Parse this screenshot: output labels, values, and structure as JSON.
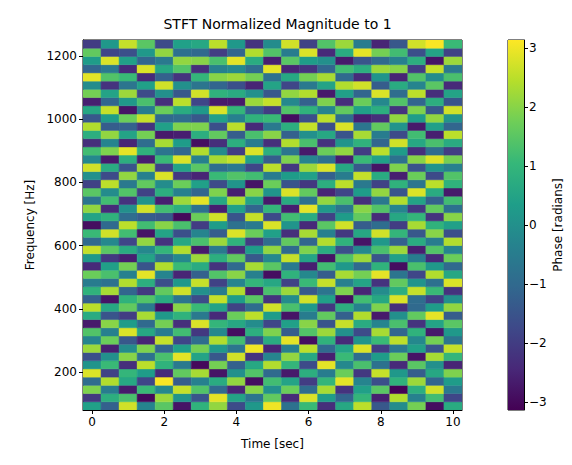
{
  "chart_data": {
    "type": "heatmap",
    "title": "STFT Normalized Magnitude to 1",
    "x_label": "Time [sec]",
    "y_label": "Frequency [Hz]",
    "x": [
      0,
      0.5,
      1,
      1.5,
      2,
      2.5,
      3,
      3.5,
      4,
      4.5,
      5,
      5.5,
      6,
      6.5,
      7,
      7.5,
      8,
      8.5,
      9,
      9.5,
      10
    ],
    "y": [
      93,
      119,
      145,
      171,
      197,
      223,
      249,
      275,
      301,
      327,
      353,
      379,
      405,
      431,
      457,
      483,
      509,
      535,
      561,
      587,
      613,
      639,
      665,
      691,
      717,
      743,
      769,
      795,
      821,
      847,
      873,
      899,
      925,
      951,
      977,
      1003,
      1029,
      1055,
      1081,
      1107,
      1133,
      1159,
      1185,
      1211,
      1237
    ],
    "z": [
      [
        0.4,
        -1.2,
        2.7,
        -0.3,
        1.5,
        -2.8,
        0.9,
        2.1,
        -1.7,
        0.2,
        3.0,
        -0.8,
        1.1,
        -2.3,
        0.6,
        2.5,
        -1.4,
        -0.1,
        1.8,
        -2.9,
        0.7
      ],
      [
        -2.1,
        0.8,
        1.3,
        -3.0,
        2.2,
        0.1,
        -1.5,
        2.9,
        0.5,
        -0.7,
        1.6,
        -2.4,
        2.8,
        0.3,
        -1.1,
        1.0,
        -2.6,
        2.4,
        -0.4,
        1.2,
        -1.8
      ],
      [
        1.9,
        -0.5,
        -2.7,
        1.1,
        -0.2,
        2.6,
        1.4,
        -1.0,
        -2.5,
        2.0,
        0.0,
        1.7,
        -0.9,
        2.3,
        -2.2,
        0.4,
        1.5,
        -3.1,
        0.8,
        2.7,
        -0.6
      ],
      [
        -0.9,
        2.4,
        0.6,
        -1.8,
        3.1,
        -1.3,
        -0.4,
        0.7,
        2.1,
        -2.9,
        1.2,
        0.5,
        -2.0,
        1.0,
        2.9,
        -0.3,
        -1.6,
        0.9,
        2.2,
        -1.1,
        0.3
      ],
      [
        2.8,
        -1.9,
        1.0,
        0.3,
        -2.4,
        1.6,
        2.3,
        -2.8,
        0.0,
        1.4,
        -1.0,
        -2.7,
        0.8,
        -0.5,
        1.7,
        -2.1,
        2.6,
        0.2,
        -1.3,
        0.6,
        1.9
      ],
      [
        0.1,
        1.1,
        -2.3,
        2.5,
        0.9,
        -0.6,
        -3.0,
        1.8,
        -1.2,
        0.6,
        2.4,
        1.0,
        -1.7,
        2.9,
        -0.2,
        1.3,
        -0.8,
        -2.4,
        1.5,
        0.0,
        -2.5
      ],
      [
        -1.6,
        0.0,
        2.0,
        -0.8,
        1.3,
        2.9,
        0.5,
        -1.4,
        2.7,
        -2.2,
        -0.3,
        2.1,
        0.6,
        -2.6,
        1.1,
        -0.9,
        0.3,
        1.7,
        -2.8,
        2.3,
        1.0
      ],
      [
        2.2,
        -2.6,
        -0.1,
        1.9,
        -1.1,
        0.4,
        1.8,
        0.2,
        -0.7,
        3.0,
        -2.5,
        -0.4,
        2.5,
        -1.0,
        0.5,
        2.8,
        -2.0,
        -0.6,
        0.4,
        -1.5,
        2.6
      ],
      [
        -0.3,
        1.7,
        -1.4,
        -2.5,
        2.6,
        -1.8,
        -0.9,
        2.4,
        1.2,
        -1.6,
        0.7,
        2.9,
        -2.9,
        0.9,
        -2.4,
        0.1,
        1.1,
        2.5,
        -0.2,
        1.8,
        -0.7
      ],
      [
        1.4,
        -0.4,
        2.8,
        0.6,
        -0.5,
        1.2,
        -2.1,
        -0.2,
        -2.9,
        0.8,
        1.9,
        -1.3,
        1.4,
        2.2,
        0.0,
        -1.7,
        2.3,
        -1.1,
        0.9,
        -2.7,
        0.2
      ],
      [
        -2.7,
        2.0,
        0.3,
        -1.0,
        1.8,
        -2.3,
        2.8,
        1.0,
        0.6,
        -0.1,
        -1.8,
        0.4,
        2.0,
        -1.5,
        2.6,
        0.7,
        -0.3,
        1.3,
        -2.2,
        0.5,
        1.5
      ],
      [
        0.7,
        -1.5,
        -2.0,
        2.3,
        0.2,
        0.9,
        -0.6,
        -2.4,
        1.7,
        2.5,
        0.3,
        -2.8,
        -0.5,
        1.6,
        -1.2,
        2.4,
        -2.7,
        0.0,
        1.6,
        2.9,
        -1.3
      ],
      [
        2.5,
        0.6,
        1.6,
        -0.6,
        -2.9,
        2.0,
        1.1,
        0.5,
        -1.9,
        -0.9,
        2.7,
        1.3,
        0.2,
        -2.1,
        0.8,
        -0.4,
        1.9,
        -2.3,
        -1.0,
        0.3,
        2.1
      ],
      [
        -1.2,
        -2.8,
        0.9,
        1.4,
        0.7,
        -0.7,
        -1.7,
        2.6,
        0.3,
        1.5,
        -2.2,
        -0.1,
        2.7,
        0.4,
        -2.9,
        1.2,
        0.6,
        2.8,
        -0.9,
        -1.9,
        0.0
      ],
      [
        0.9,
        2.3,
        -1.1,
        -2.1,
        1.6,
        2.7,
        0.0,
        -0.5,
        2.4,
        -2.6,
        1.3,
        2.2,
        -1.4,
        -0.7,
        1.9,
        -2.5,
        -0.1,
        0.8,
        2.6,
        1.1,
        -2.2
      ],
      [
        -0.5,
        -0.8,
        2.4,
        0.8,
        -1.6,
        0.2,
        2.6,
        -1.9,
        -0.3,
        1.0,
        0.6,
        -1.9,
        1.1,
        2.6,
        -0.4,
        0.5,
        -2.2,
        1.6,
        0.1,
        -0.8,
        2.8
      ],
      [
        1.7,
        1.3,
        -0.4,
        2.9,
        -0.3,
        -2.5,
        -1.2,
        1.4,
        2.0,
        -0.4,
        -2.9,
        0.9,
        -0.2,
        -1.3,
        2.3,
        1.8,
        2.9,
        -0.7,
        -1.8,
        2.4,
        0.6
      ],
      [
        -2.4,
        0.4,
        1.8,
        -1.5,
        2.4,
        1.1,
        0.7,
        -2.2,
        -1.0,
        2.3,
        1.5,
        -0.6,
        -2.6,
        1.2,
        0.2,
        -1.0,
        0.9,
        -2.9,
        1.3,
        0.2,
        -1.0
      ],
      [
        0.2,
        -2.1,
        -2.6,
        0.5,
        -0.9,
        -0.2,
        2.2,
        0.8,
        1.6,
        -1.4,
        -0.2,
        2.6,
        0.5,
        -2.8,
        1.4,
        2.2,
        -1.5,
        0.4,
        -0.5,
        -2.4,
        1.7
      ],
      [
        2.6,
        1.5,
        0.7,
        -0.2,
        1.0,
        2.4,
        -2.7,
        -0.6,
        -2.3,
        0.3,
        2.1,
        -1.0,
        1.9,
        0.7,
        -1.6,
        -0.2,
        1.3,
        2.2,
        -2.6,
        1.4,
        -0.3
      ],
      [
        -1.0,
        -0.2,
        -1.8,
        2.1,
        -2.2,
        0.6,
        1.3,
        2.2,
        0.9,
        -2.0,
        -0.9,
        1.6,
        -1.1,
        2.4,
        0.9,
        -2.8,
        0.2,
        -1.2,
        0.7,
        -0.5,
        2.4
      ],
      [
        1.1,
        2.7,
        1.2,
        -2.8,
        0.5,
        -1.6,
        -0.3,
        -1.3,
        2.8,
        1.7,
        0.4,
        -2.3,
        2.3,
        -0.4,
        -2.1,
        0.6,
        2.7,
        1.0,
        -1.4,
        2.0,
        -1.6
      ],
      [
        -2.9,
        -1.0,
        2.5,
        1.2,
        2.0,
        1.3,
        -2.0,
        0.3,
        -0.8,
        -0.6,
        2.8,
        0.1,
        -2.4,
        1.5,
        2.7,
        -1.3,
        -0.9,
        -2.0,
        2.3,
        0.9,
        0.4
      ],
      [
        0.5,
        0.9,
        -0.9,
        -1.3,
        -1.4,
        -3.0,
        1.7,
        2.7,
        -1.5,
        2.6,
        -1.7,
        1.2,
        0.7,
        -1.9,
        0.3,
        1.6,
        -2.4,
        0.6,
        1.0,
        -2.2,
        2.0
      ],
      [
        2.1,
        -2.4,
        0.0,
        2.7,
        1.2,
        0.8,
        -0.8,
        -2.6,
        0.4,
        -1.1,
        1.0,
        -2.6,
        2.9,
        0.2,
        -0.7,
        2.0,
        1.4,
        -0.3,
        -2.1,
        1.6,
        -0.8
      ],
      [
        -0.7,
        1.2,
        -2.2,
        0.1,
        -2.6,
        2.2,
        2.9,
        0.6,
        2.3,
        0.5,
        -2.7,
        0.7,
        -0.8,
        2.1,
        1.3,
        -2.3,
        -0.6,
        2.4,
        0.5,
        -1.2,
        1.2
      ],
      [
        1.5,
        -0.1,
        1.4,
        -1.9,
        0.8,
        -0.4,
        -1.1,
        1.9,
        -2.6,
        2.0,
        0.1,
        2.8,
        1.6,
        -2.5,
        -1.8,
        0.3,
        2.1,
        -1.5,
        2.8,
        0.7,
        -2.7
      ],
      [
        -1.9,
        2.5,
        -0.6,
        1.6,
        -0.1,
        1.7,
        0.4,
        -1.7,
        0.1,
        -2.8,
        1.7,
        -1.5,
        -2.1,
        0.8,
        2.5,
        -0.6,
        -1.9,
        0.9,
        -0.7,
        2.5,
        0.9
      ],
      [
        0.0,
        -1.7,
        2.1,
        -0.4,
        2.8,
        -2.1,
        -2.5,
        1.1,
        1.4,
        1.2,
        -0.5,
        0.3,
        0.4,
        -1.2,
        -0.5,
        2.6,
        0.7,
        -2.6,
        1.7,
        -1.7,
        1.4
      ],
      [
        2.7,
        0.7,
        -1.5,
        2.2,
        -1.9,
        0.5,
        1.5,
        -0.9,
        -0.6,
        -1.8,
        2.5,
        -2.1,
        2.2,
        2.8,
        0.6,
        -1.4,
        -2.8,
        1.9,
        -1.5,
        0.1,
        -0.4
      ],
      [
        -0.2,
        -2.7,
        0.8,
        -2.6,
        1.1,
        2.8,
        -0.4,
        2.3,
        2.6,
        0.4,
        -1.3,
        1.9,
        -0.3,
        -0.8,
        -2.6,
        1.1,
        0.4,
        -0.8,
        2.0,
        2.8,
        1.8
      ],
      [
        1.2,
        1.9,
        2.9,
        0.9,
        -0.7,
        -1.1,
        2.4,
        -0.1,
        -2.0,
        2.8,
        0.8,
        -0.7,
        -2.7,
        1.7,
        2.1,
        -2.0,
        2.5,
        0.3,
        -2.3,
        -0.9,
        -2.0
      ],
      [
        -2.3,
        -0.3,
        -2.5,
        -0.9,
        2.3,
        0.3,
        -2.9,
        -2.3,
        0.8,
        -0.5,
        -2.3,
        2.4,
        1.3,
        -2.2,
        0.1,
        0.9,
        -1.1,
        2.7,
        0.6,
        1.3,
        0.7
      ],
      [
        0.8,
        2.1,
        0.5,
        1.8,
        -2.7,
        -2.6,
        0.8,
        1.6,
        -1.3,
        1.3,
        2.0,
        -1.2,
        0.0,
        0.6,
        -1.5,
        2.3,
        -0.5,
        -1.7,
        1.2,
        -2.6,
        2.5
      ],
      [
        2.4,
        -1.3,
        -1.2,
        -2.2,
        0.4,
        1.9,
        1.9,
        -1.6,
        2.5,
        -2.4,
        -0.6,
        0.8,
        2.6,
        -1.6,
        2.8,
        -0.7,
        1.6,
        0.1,
        -2.7,
        0.4,
        -1.1
      ],
      [
        -1.4,
        0.3,
        1.7,
        2.6,
        -1.0,
        -0.9,
        -1.4,
        0.4,
        -0.4,
        0.9,
        1.1,
        -2.9,
        -1.6,
        2.5,
        -0.9,
        -2.6,
        -2.3,
        2.1,
        0.3,
        2.1,
        0.1
      ],
      [
        0.6,
        2.6,
        -2.8,
        -0.5,
        1.7,
        0.7,
        0.2,
        2.8,
        1.0,
        -1.2,
        -2.0,
        1.4,
        0.9,
        -0.3,
        1.6,
        0.4,
        0.8,
        -2.2,
        1.9,
        -1.4,
        2.7
      ],
      [
        -2.6,
        -1.1,
        0.2,
        1.3,
        -2.3,
        2.5,
        -1.8,
        -2.7,
        -2.7,
        2.2,
        2.6,
        -0.2,
        -1.2,
        1.9,
        -2.3,
        1.7,
        -0.2,
        1.4,
        -1.1,
        0.8,
        -1.5
      ],
      [
        1.8,
        0.5,
        2.2,
        -1.7,
        0.0,
        -1.4,
        2.7,
        0.9,
        0.7,
        0.0,
        -1.4,
        2.1,
        2.4,
        -2.7,
        0.4,
        -1.1,
        2.8,
        -0.9,
        2.5,
        -2.3,
        0.5
      ],
      [
        -0.1,
        -2.2,
        -0.7,
        0.4,
        2.7,
        0.0,
        -0.7,
        -1.1,
        -1.6,
        -2.5,
        0.5,
        -1.8,
        -0.6,
        0.5,
        2.4,
        2.7,
        -1.3,
        0.7,
        -0.3,
        1.5,
        -2.4
      ],
      [
        2.9,
        1.4,
        1.1,
        -2.4,
        -1.2,
        -2.2,
        1.0,
        2.0,
        2.2,
        1.8,
        -0.8,
        0.6,
        1.8,
        2.3,
        -1.0,
        -2.4,
        0.1,
        -2.5,
        1.4,
        -0.1,
        1.3
      ],
      [
        -1.1,
        -0.6,
        -2.4,
        2.8,
        0.6,
        1.4,
        -2.3,
        -0.4,
        -0.2,
        -0.9,
        2.9,
        -2.5,
        -2.2,
        -1.1,
        1.2,
        0.8,
        2.2,
        2.0,
        -2.0,
        2.6,
        -0.6
      ],
      [
        0.3,
        2.8,
        0.4,
        -1.1,
        -0.6,
        2.1,
        2.0,
        1.3,
        2.9,
        0.7,
        -2.6,
        1.5,
        0.3,
        0.0,
        -2.7,
        -1.5,
        -1.0,
        -0.4,
        0.8,
        -2.8,
        2.2
      ],
      [
        1.6,
        -1.8,
        -1.6,
        0.2,
        2.1,
        -0.8,
        -1.0,
        -2.0,
        -1.1,
        2.4,
        1.4,
        -0.5,
        2.8,
        -2.4,
        0.7,
        2.9,
        1.8,
        1.2,
        -1.6,
        0.5,
        -1.9
      ],
      [
        -2.0,
        0.2,
        2.6,
        1.5,
        -1.7,
        0.4,
        0.6,
        2.5,
        0.2,
        -2.2,
        -0.1,
        2.7,
        -1.9,
        1.4,
        2.2,
        -0.5,
        -2.5,
        -1.4,
        2.7,
        3.1,
        1.1
      ]
    ],
    "xlim": [
      -0.25,
      10.25
    ],
    "xticks": [
      0,
      2,
      4,
      6,
      8,
      10
    ],
    "ylim": [
      80,
      1250
    ],
    "yticks": [
      200,
      400,
      600,
      800,
      1000,
      1200
    ],
    "colorbar": {
      "label": "Phase [radians]",
      "range": [
        -3.14,
        3.14
      ],
      "ticks": [
        {
          "value": -3,
          "label": "−3"
        },
        {
          "value": -2,
          "label": "−2"
        },
        {
          "value": -1,
          "label": "−1"
        },
        0,
        1,
        2,
        3
      ]
    }
  }
}
